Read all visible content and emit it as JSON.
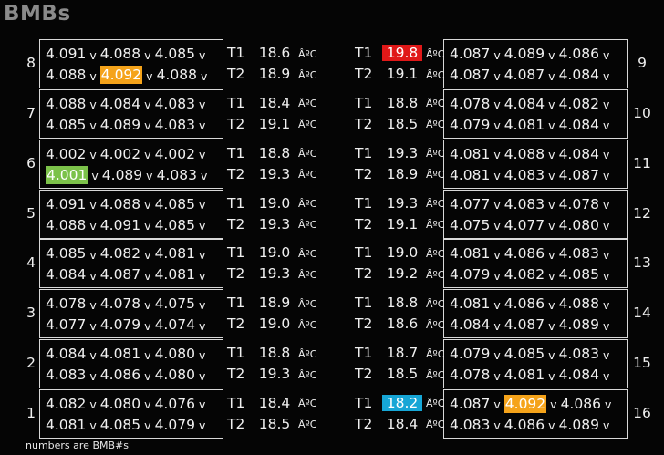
{
  "title": "BMBs",
  "volt_unit": "v",
  "temp_unit": "ÂºC",
  "footnote": "numbers are BMB#s",
  "colors": {
    "background": "#050505",
    "text": "#f0f0f0",
    "title": "#8a8a8a",
    "highlight_orange": "#f5a31a",
    "highlight_green": "#7cc24a",
    "highlight_red": "#e01818",
    "highlight_cyan": "#16a6d6"
  },
  "left_modules": [
    {
      "num": "8",
      "row1": [
        "4.091",
        "4.088",
        "4.085"
      ],
      "row2": [
        "4.088",
        "4.092",
        "4.088"
      ],
      "hl": {
        "r2c1": "orange"
      },
      "t1": "18.6",
      "t2": "18.9"
    },
    {
      "num": "7",
      "row1": [
        "4.088",
        "4.084",
        "4.083"
      ],
      "row2": [
        "4.085",
        "4.089",
        "4.083"
      ],
      "t1": "18.4",
      "t2": "19.1"
    },
    {
      "num": "6",
      "row1": [
        "4.002",
        "4.002",
        "4.002"
      ],
      "row2": [
        "4.001",
        "4.089",
        "4.083"
      ],
      "hl": {
        "r2c0": "green"
      },
      "t1": "18.8",
      "t2": "19.3"
    },
    {
      "num": "5",
      "row1": [
        "4.091",
        "4.088",
        "4.085"
      ],
      "row2": [
        "4.088",
        "4.091",
        "4.085"
      ],
      "t1": "19.0",
      "t2": "19.3"
    },
    {
      "num": "4",
      "row1": [
        "4.085",
        "4.082",
        "4.081"
      ],
      "row2": [
        "4.084",
        "4.087",
        "4.081"
      ],
      "t1": "19.0",
      "t2": "19.3"
    },
    {
      "num": "3",
      "row1": [
        "4.078",
        "4.078",
        "4.075"
      ],
      "row2": [
        "4.077",
        "4.079",
        "4.074"
      ],
      "t1": "18.9",
      "t2": "19.0"
    },
    {
      "num": "2",
      "row1": [
        "4.084",
        "4.081",
        "4.080"
      ],
      "row2": [
        "4.083",
        "4.086",
        "4.080"
      ],
      "t1": "18.8",
      "t2": "19.3"
    },
    {
      "num": "1",
      "row1": [
        "4.082",
        "4.080",
        "4.076"
      ],
      "row2": [
        "4.081",
        "4.085",
        "4.079"
      ],
      "t1": "18.4",
      "t2": "18.5"
    }
  ],
  "right_modules": [
    {
      "num": "9",
      "row1": [
        "4.087",
        "4.089",
        "4.086"
      ],
      "row2": [
        "4.087",
        "4.087",
        "4.084"
      ],
      "t1": "19.8",
      "t2": "19.1",
      "t1_hl": "red"
    },
    {
      "num": "10",
      "row1": [
        "4.078",
        "4.084",
        "4.082"
      ],
      "row2": [
        "4.079",
        "4.081",
        "4.084"
      ],
      "t1": "18.8",
      "t2": "18.5"
    },
    {
      "num": "11",
      "row1": [
        "4.081",
        "4.088",
        "4.084"
      ],
      "row2": [
        "4.081",
        "4.083",
        "4.087"
      ],
      "t1": "19.3",
      "t2": "18.9"
    },
    {
      "num": "12",
      "row1": [
        "4.077",
        "4.083",
        "4.078"
      ],
      "row2": [
        "4.075",
        "4.077",
        "4.080"
      ],
      "t1": "19.3",
      "t2": "19.1"
    },
    {
      "num": "13",
      "row1": [
        "4.081",
        "4.086",
        "4.083"
      ],
      "row2": [
        "4.079",
        "4.082",
        "4.085"
      ],
      "t1": "19.0",
      "t2": "19.2"
    },
    {
      "num": "14",
      "row1": [
        "4.081",
        "4.086",
        "4.088"
      ],
      "row2": [
        "4.084",
        "4.087",
        "4.089"
      ],
      "t1": "18.8",
      "t2": "18.6"
    },
    {
      "num": "15",
      "row1": [
        "4.079",
        "4.085",
        "4.083"
      ],
      "row2": [
        "4.078",
        "4.081",
        "4.084"
      ],
      "t1": "18.7",
      "t2": "18.5"
    },
    {
      "num": "16",
      "row1": [
        "4.087",
        "4.092",
        "4.086"
      ],
      "row2": [
        "4.083",
        "4.086",
        "4.089"
      ],
      "hl": {
        "r1c1": "orange"
      },
      "t1": "18.2",
      "t2": "18.4",
      "t1_hl": "cyan"
    }
  ],
  "t_labels": [
    "T1",
    "T2"
  ]
}
